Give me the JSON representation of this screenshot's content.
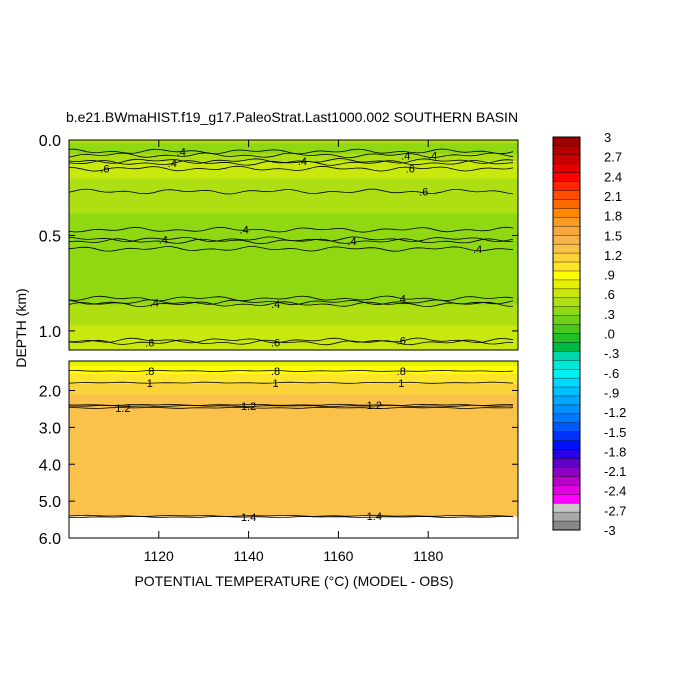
{
  "chart_data": {
    "type": "contour",
    "title": "b.e21.BWmaHIST.f19_g17.PaleoStrat.Last1000.002 SOUTHERN BASIN",
    "xlabel": "POTENTIAL TEMPERATURE (°C) (MODEL - OBS)",
    "ylabel": "DEPTH (km)",
    "xlim": [
      1100,
      1200
    ],
    "x_ticks": [
      1120,
      1140,
      1160,
      1180
    ],
    "upper_panel": {
      "ylim": [
        0.0,
        1.1
      ],
      "y_ticks": [
        "0.0",
        "0.5",
        "1.0"
      ],
      "profile": [
        {
          "depth": 0.0,
          "value": 0.45
        },
        {
          "depth": 0.06,
          "value": 0.35
        },
        {
          "depth": 0.12,
          "value": 0.55
        },
        {
          "depth": 0.2,
          "value": 0.55
        },
        {
          "depth": 0.3,
          "value": 0.45
        },
        {
          "depth": 0.5,
          "value": 0.35
        },
        {
          "depth": 0.7,
          "value": 0.3
        },
        {
          "depth": 0.85,
          "value": 0.4
        },
        {
          "depth": 0.95,
          "value": 0.5
        },
        {
          "depth": 1.05,
          "value": 0.65
        }
      ],
      "contour_labels": [
        {
          "x": 1125,
          "depth": 0.06,
          "text": ".4"
        },
        {
          "x": 1108,
          "depth": 0.15,
          "text": ".6"
        },
        {
          "x": 1123,
          "depth": 0.12,
          "text": ".4"
        },
        {
          "x": 1152,
          "depth": 0.11,
          "text": ".4"
        },
        {
          "x": 1175,
          "depth": 0.08,
          "text": ".4"
        },
        {
          "x": 1181,
          "depth": 0.08,
          "text": ".4"
        },
        {
          "x": 1176,
          "depth": 0.15,
          "text": ".6"
        },
        {
          "x": 1179,
          "depth": 0.27,
          "text": ".6"
        },
        {
          "x": 1121,
          "depth": 0.52,
          "text": ".4"
        },
        {
          "x": 1139,
          "depth": 0.47,
          "text": ".4"
        },
        {
          "x": 1163,
          "depth": 0.53,
          "text": ".4"
        },
        {
          "x": 1191,
          "depth": 0.57,
          "text": ".4"
        },
        {
          "x": 1119,
          "depth": 0.85,
          "text": ".4"
        },
        {
          "x": 1146,
          "depth": 0.86,
          "text": ".4"
        },
        {
          "x": 1174,
          "depth": 0.83,
          "text": ".4"
        },
        {
          "x": 1118,
          "depth": 1.06,
          "text": ".6"
        },
        {
          "x": 1146,
          "depth": 1.06,
          "text": ".6"
        },
        {
          "x": 1174,
          "depth": 1.05,
          "text": ".6"
        }
      ]
    },
    "lower_panel": {
      "ylim": [
        1.2,
        6.0
      ],
      "y_ticks": [
        "2.0",
        "3.0",
        "4.0",
        "5.0",
        "6.0"
      ],
      "data_bottom_depth": 5.4,
      "profile": [
        {
          "depth": 1.2,
          "value": 0.7
        },
        {
          "depth": 1.4,
          "value": 0.85
        },
        {
          "depth": 1.7,
          "value": 1.05
        },
        {
          "depth": 2.2,
          "value": 1.25
        },
        {
          "depth": 5.4,
          "value": 1.35
        }
      ],
      "contour_labels": [
        {
          "x": 1118,
          "depth": 1.47,
          "text": ".8"
        },
        {
          "x": 1146,
          "depth": 1.47,
          "text": ".8"
        },
        {
          "x": 1174,
          "depth": 1.47,
          "text": ".8"
        },
        {
          "x": 1118,
          "depth": 1.79,
          "text": "1"
        },
        {
          "x": 1146,
          "depth": 1.79,
          "text": "1"
        },
        {
          "x": 1174,
          "depth": 1.79,
          "text": "1"
        },
        {
          "x": 1112,
          "depth": 2.47,
          "text": "1.2"
        },
        {
          "x": 1140,
          "depth": 2.42,
          "text": "1.2"
        },
        {
          "x": 1168,
          "depth": 2.39,
          "text": "1.2"
        },
        {
          "x": 1140,
          "depth": 5.43,
          "text": "1.4"
        },
        {
          "x": 1168,
          "depth": 5.4,
          "text": "1.4"
        }
      ]
    },
    "colorbar": {
      "labels": [
        "3",
        "2.7",
        "2.4",
        "2.1",
        "1.8",
        "1.5",
        "1.2",
        ".9",
        ".6",
        ".3",
        ".0",
        "-.3",
        "-.6",
        "-.9",
        "-1.2",
        "-1.5",
        "-1.8",
        "-2.1",
        "-2.4",
        "-2.7",
        "-3"
      ],
      "colors": [
        "#9c0000",
        "#b40000",
        "#cc0000",
        "#e40000",
        "#ff0000",
        "#ff2800",
        "#ff4c00",
        "#ff6a00",
        "#ff8800",
        "#f99a22",
        "#f9a73c",
        "#f9b34c",
        "#fac24a",
        "#fbd23a",
        "#fde52a",
        "#ffff00",
        "#e6f000",
        "#c9e80e",
        "#aedf12",
        "#8fd812",
        "#6ed11a",
        "#48c81e",
        "#22c022",
        "#00b846",
        "#00d6ae",
        "#00e8d8",
        "#00f2f2",
        "#00d8ff",
        "#00c0ff",
        "#00a8ff",
        "#0090ff",
        "#0078ff",
        "#0058ff",
        "#0032ff",
        "#0010ff",
        "#2a00e8",
        "#6000c8",
        "#8e00c8",
        "#b800c8",
        "#e000e0",
        "#ff00ff",
        "#c8c8c8",
        "#a8a8a8",
        "#888888"
      ]
    }
  }
}
